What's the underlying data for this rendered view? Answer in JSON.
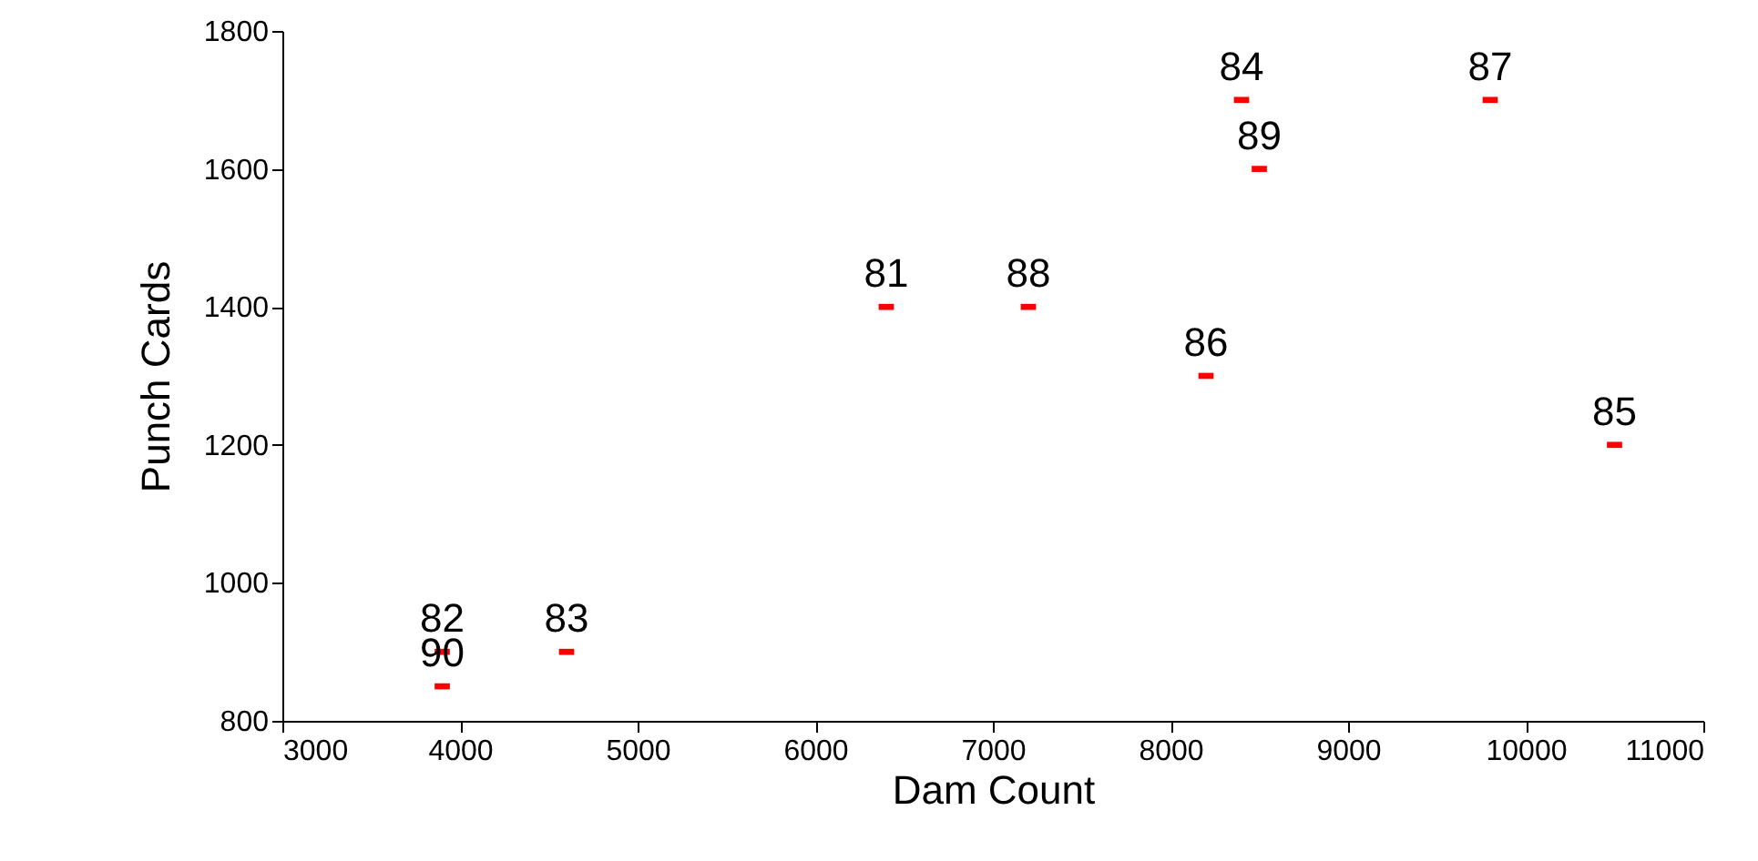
{
  "chart_data": {
    "type": "scatter",
    "xlabel": "Dam Count",
    "ylabel": "Punch Cards",
    "x": [
      6400,
      3900,
      4600,
      8400,
      10500,
      8200,
      9800,
      7200,
      8500,
      3900
    ],
    "series": [
      {
        "color": "#ff0000",
        "values": [
          1400,
          900,
          900,
          1700,
          1200,
          1300,
          1700,
          1400,
          1600,
          850
        ]
      }
    ],
    "annotations": [
      {
        "text": "81",
        "x": 6400,
        "y": 1400
      },
      {
        "text": "82",
        "x": 3900,
        "y": 900
      },
      {
        "text": "83",
        "x": 4600,
        "y": 900
      },
      {
        "text": "84",
        "x": 8400,
        "y": 1700
      },
      {
        "text": "85",
        "x": 10500,
        "y": 1200
      },
      {
        "text": "86",
        "x": 8200,
        "y": 1300
      },
      {
        "text": "87",
        "x": 9800,
        "y": 1700
      },
      {
        "text": "88",
        "x": 7200,
        "y": 1400
      },
      {
        "text": "89",
        "x": 8500,
        "y": 1600
      },
      {
        "text": "90",
        "x": 3900,
        "y": 850
      }
    ],
    "xlim": [
      3000,
      11000
    ],
    "xticks": [
      3000,
      4000,
      5000,
      6000,
      7000,
      8000,
      9000,
      10000,
      11000
    ],
    "ylim": [
      800,
      1800
    ],
    "yticks": [
      800,
      1000,
      1200,
      1400,
      1600,
      1800
    ],
    "grid": false,
    "marker": "square"
  }
}
